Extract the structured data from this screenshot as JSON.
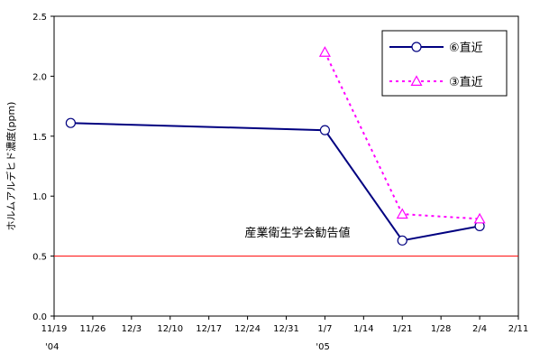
{
  "chart_data": {
    "type": "line",
    "title": "",
    "xlabel": "",
    "ylabel": "ホルムアルデヒド濃度(ppm)",
    "ylim": [
      0,
      2.5
    ],
    "yticks": [
      "0.0",
      "0.5",
      "1.0",
      "1.5",
      "2.0",
      "2.5"
    ],
    "xlim": [
      "2004-11-19",
      "2005-02-11"
    ],
    "xticks": [
      "11/19",
      "11/26",
      "12/3",
      "12/10",
      "12/17",
      "12/24",
      "12/31",
      "1/7",
      "1/14",
      "1/21",
      "1/28",
      "2/4",
      "2/11"
    ],
    "year_labels": [
      {
        "date": "2004-11-19",
        "label": "'04"
      },
      {
        "date": "2005-01-07",
        "label": "'05"
      }
    ],
    "series": [
      {
        "name": "⑥直近",
        "color": "#000080",
        "marker": "circle",
        "line": "solid",
        "x": [
          "2004-11-22",
          "2005-01-07",
          "2005-01-21",
          "2005-02-04"
        ],
        "y": [
          1.61,
          1.55,
          0.63,
          0.75
        ]
      },
      {
        "name": "③直近",
        "color": "#ff00ff",
        "marker": "triangle",
        "line": "dotted",
        "x": [
          "2005-01-07",
          "2005-01-21",
          "2005-02-04"
        ],
        "y": [
          2.2,
          0.85,
          0.81
        ]
      }
    ],
    "reference_line": {
      "value": 0.5,
      "label": "産業衛生学会勧告値",
      "color": "#ff0000"
    },
    "grid": false,
    "legend": "top-right"
  }
}
